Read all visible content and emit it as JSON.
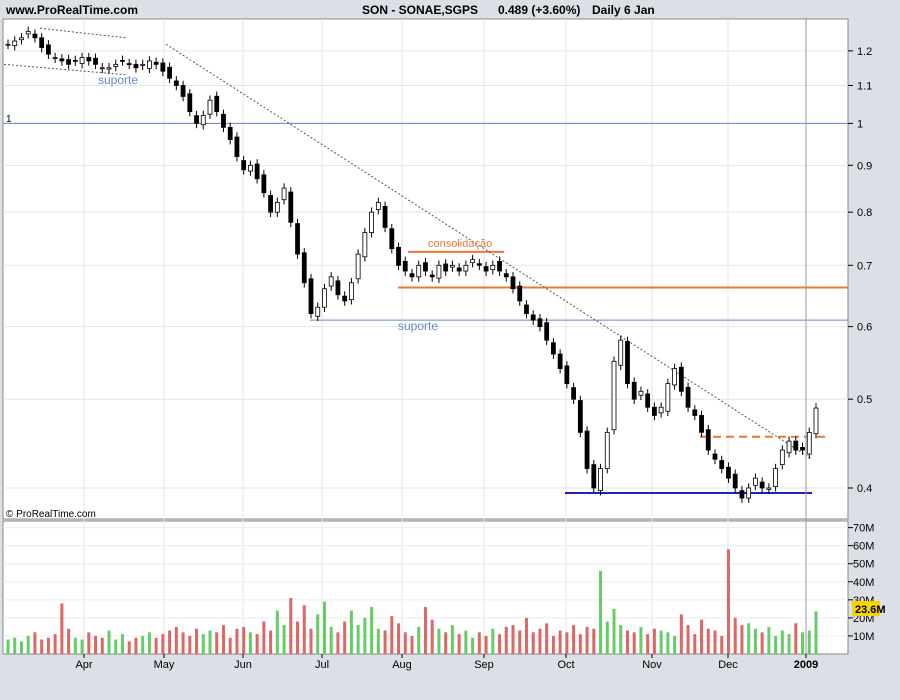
{
  "header": {
    "site": "www.ProRealTime.com",
    "instrument": "SON - SONAE,SGPS",
    "quote": "0.489 (+3.60%)",
    "period": "Daily 6 Jan"
  },
  "copyright": "© ProRealTime.com",
  "chart_data": {
    "type": "candlestick",
    "price_axis": {
      "scale": "log",
      "range": [
        0.37,
        1.3
      ],
      "ticks": [
        "1.2",
        "1.1",
        "1",
        "0.9",
        "0.8",
        "0.7",
        "0.6",
        "0.5",
        "0.4"
      ]
    },
    "volume_axis": {
      "unit": "shares",
      "ticks": [
        "10M",
        "20M",
        "30M",
        "40M",
        "50M",
        "60M",
        "70M"
      ],
      "last_value_label": "23.6M",
      "last_value": 23.6
    },
    "time_axis": {
      "labels": [
        "Apr",
        "May",
        "Jun",
        "Jul",
        "Aug",
        "Sep",
        "Oct",
        "Nov",
        "Dec",
        "2009"
      ]
    },
    "horizontal_lines": [
      {
        "name": "level-1",
        "price": 1.0,
        "color": "#6688cc",
        "label": "1"
      },
      {
        "name": "support-0.61",
        "price": 0.61,
        "color": "#6688cc"
      },
      {
        "name": "resistance-0.66",
        "price": 0.662,
        "color": "#ee7733"
      },
      {
        "name": "consolidation-top",
        "price": 0.724,
        "color": "#ee7733"
      },
      {
        "name": "support-0.395",
        "price": 0.395,
        "color": "#2222bb"
      },
      {
        "name": "breakout-0.455",
        "price": 0.455,
        "color": "#ee7733",
        "style": "dashed"
      }
    ],
    "annotations": [
      {
        "text": "suporte",
        "color": "#6688cc"
      },
      {
        "text": "suporte",
        "color": "#6688cc"
      },
      {
        "text": "consolidação",
        "color": "#ee7733"
      }
    ],
    "trendlines": [
      {
        "name": "downtrend",
        "from_price": 1.22,
        "to_price": 0.43
      },
      {
        "name": "channel-top",
        "from_price": 1.27,
        "to_price": 1.24
      },
      {
        "name": "channel-bottom",
        "from_price": 1.16,
        "to_price": 1.13
      }
    ],
    "closes": [
      1.22,
      1.23,
      1.24,
      1.26,
      1.24,
      1.21,
      1.19,
      1.18,
      1.17,
      1.16,
      1.17,
      1.18,
      1.17,
      1.16,
      1.15,
      1.15,
      1.16,
      1.17,
      1.16,
      1.15,
      1.16,
      1.17,
      1.16,
      1.14,
      1.12,
      1.1,
      1.07,
      1.03,
      1.0,
      1.02,
      1.06,
      1.03,
      0.99,
      0.96,
      0.92,
      0.89,
      0.9,
      0.87,
      0.84,
      0.8,
      0.82,
      0.85,
      0.78,
      0.72,
      0.67,
      0.62,
      0.63,
      0.66,
      0.68,
      0.65,
      0.64,
      0.67,
      0.72,
      0.76,
      0.8,
      0.82,
      0.77,
      0.73,
      0.7,
      0.69,
      0.68,
      0.7,
      0.69,
      0.68,
      0.7,
      0.69,
      0.7,
      0.69,
      0.7,
      0.71,
      0.7,
      0.69,
      0.7,
      0.69,
      0.68,
      0.66,
      0.64,
      0.62,
      0.61,
      0.6,
      0.58,
      0.56,
      0.54,
      0.52,
      0.5,
      0.46,
      0.42,
      0.4,
      0.42,
      0.46,
      0.55,
      0.58,
      0.52,
      0.5,
      0.51,
      0.49,
      0.48,
      0.49,
      0.52,
      0.54,
      0.51,
      0.49,
      0.48,
      0.46,
      0.44,
      0.43,
      0.42,
      0.41,
      0.4,
      0.39,
      0.4,
      0.41,
      0.4,
      0.4,
      0.42,
      0.44,
      0.45,
      0.44,
      0.44,
      0.46,
      0.489
    ],
    "volumes": [
      8,
      9,
      7,
      10,
      12,
      8,
      9,
      11,
      28,
      14,
      9,
      8,
      12,
      10,
      9,
      13,
      8,
      11,
      7,
      9,
      10,
      12,
      9,
      11,
      13,
      15,
      12,
      10,
      14,
      11,
      13,
      12,
      16,
      9,
      14,
      15,
      12,
      11,
      18,
      13,
      24,
      16,
      31,
      18,
      27,
      14,
      22,
      29,
      15,
      12,
      18,
      24,
      16,
      20,
      26,
      14,
      13,
      21,
      17,
      12,
      10,
      15,
      26,
      19,
      14,
      12,
      16,
      11,
      13,
      9,
      12,
      10,
      14,
      11,
      15,
      16,
      13,
      20,
      12,
      14,
      17,
      10,
      13,
      12,
      16,
      11,
      15,
      14,
      46,
      18,
      25,
      16,
      13,
      12,
      15,
      11,
      14,
      13,
      12,
      10,
      22,
      16,
      11,
      19,
      14,
      13,
      10,
      58,
      20,
      16,
      17,
      14,
      12,
      15,
      10,
      13,
      11,
      17,
      12,
      13,
      23.6
    ]
  }
}
